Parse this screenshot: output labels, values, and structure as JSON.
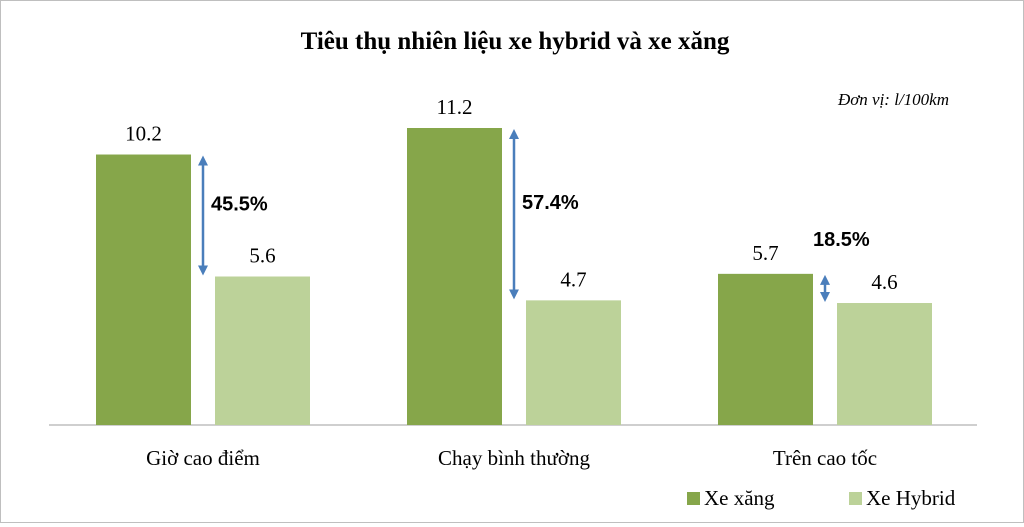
{
  "chart_data": {
    "type": "bar",
    "title": "Tiêu thụ nhiên liệu xe hybrid và xe xăng",
    "unit_note": "Đơn vị: l/100km",
    "categories": [
      "Giờ cao điểm",
      "Chạy bình thường",
      "Trên cao tốc"
    ],
    "series": [
      {
        "name": "Xe xăng",
        "values": [
          10.2,
          11.2,
          5.7
        ],
        "labels": [
          "10.2",
          "11.2",
          "5.7"
        ],
        "color": "#86a64a"
      },
      {
        "name": "Xe Hybrid",
        "values": [
          5.6,
          4.7,
          4.6
        ],
        "labels": [
          "5.6",
          "4.7",
          "4.6"
        ],
        "color": "#bcd299"
      }
    ],
    "differences": [
      "45.5%",
      "57.4%",
      "18.5%"
    ],
    "arrow_color": "#4a7ebb",
    "ylim": [
      0,
      11.2
    ],
    "grid": false,
    "legend_position": "bottom-right"
  }
}
